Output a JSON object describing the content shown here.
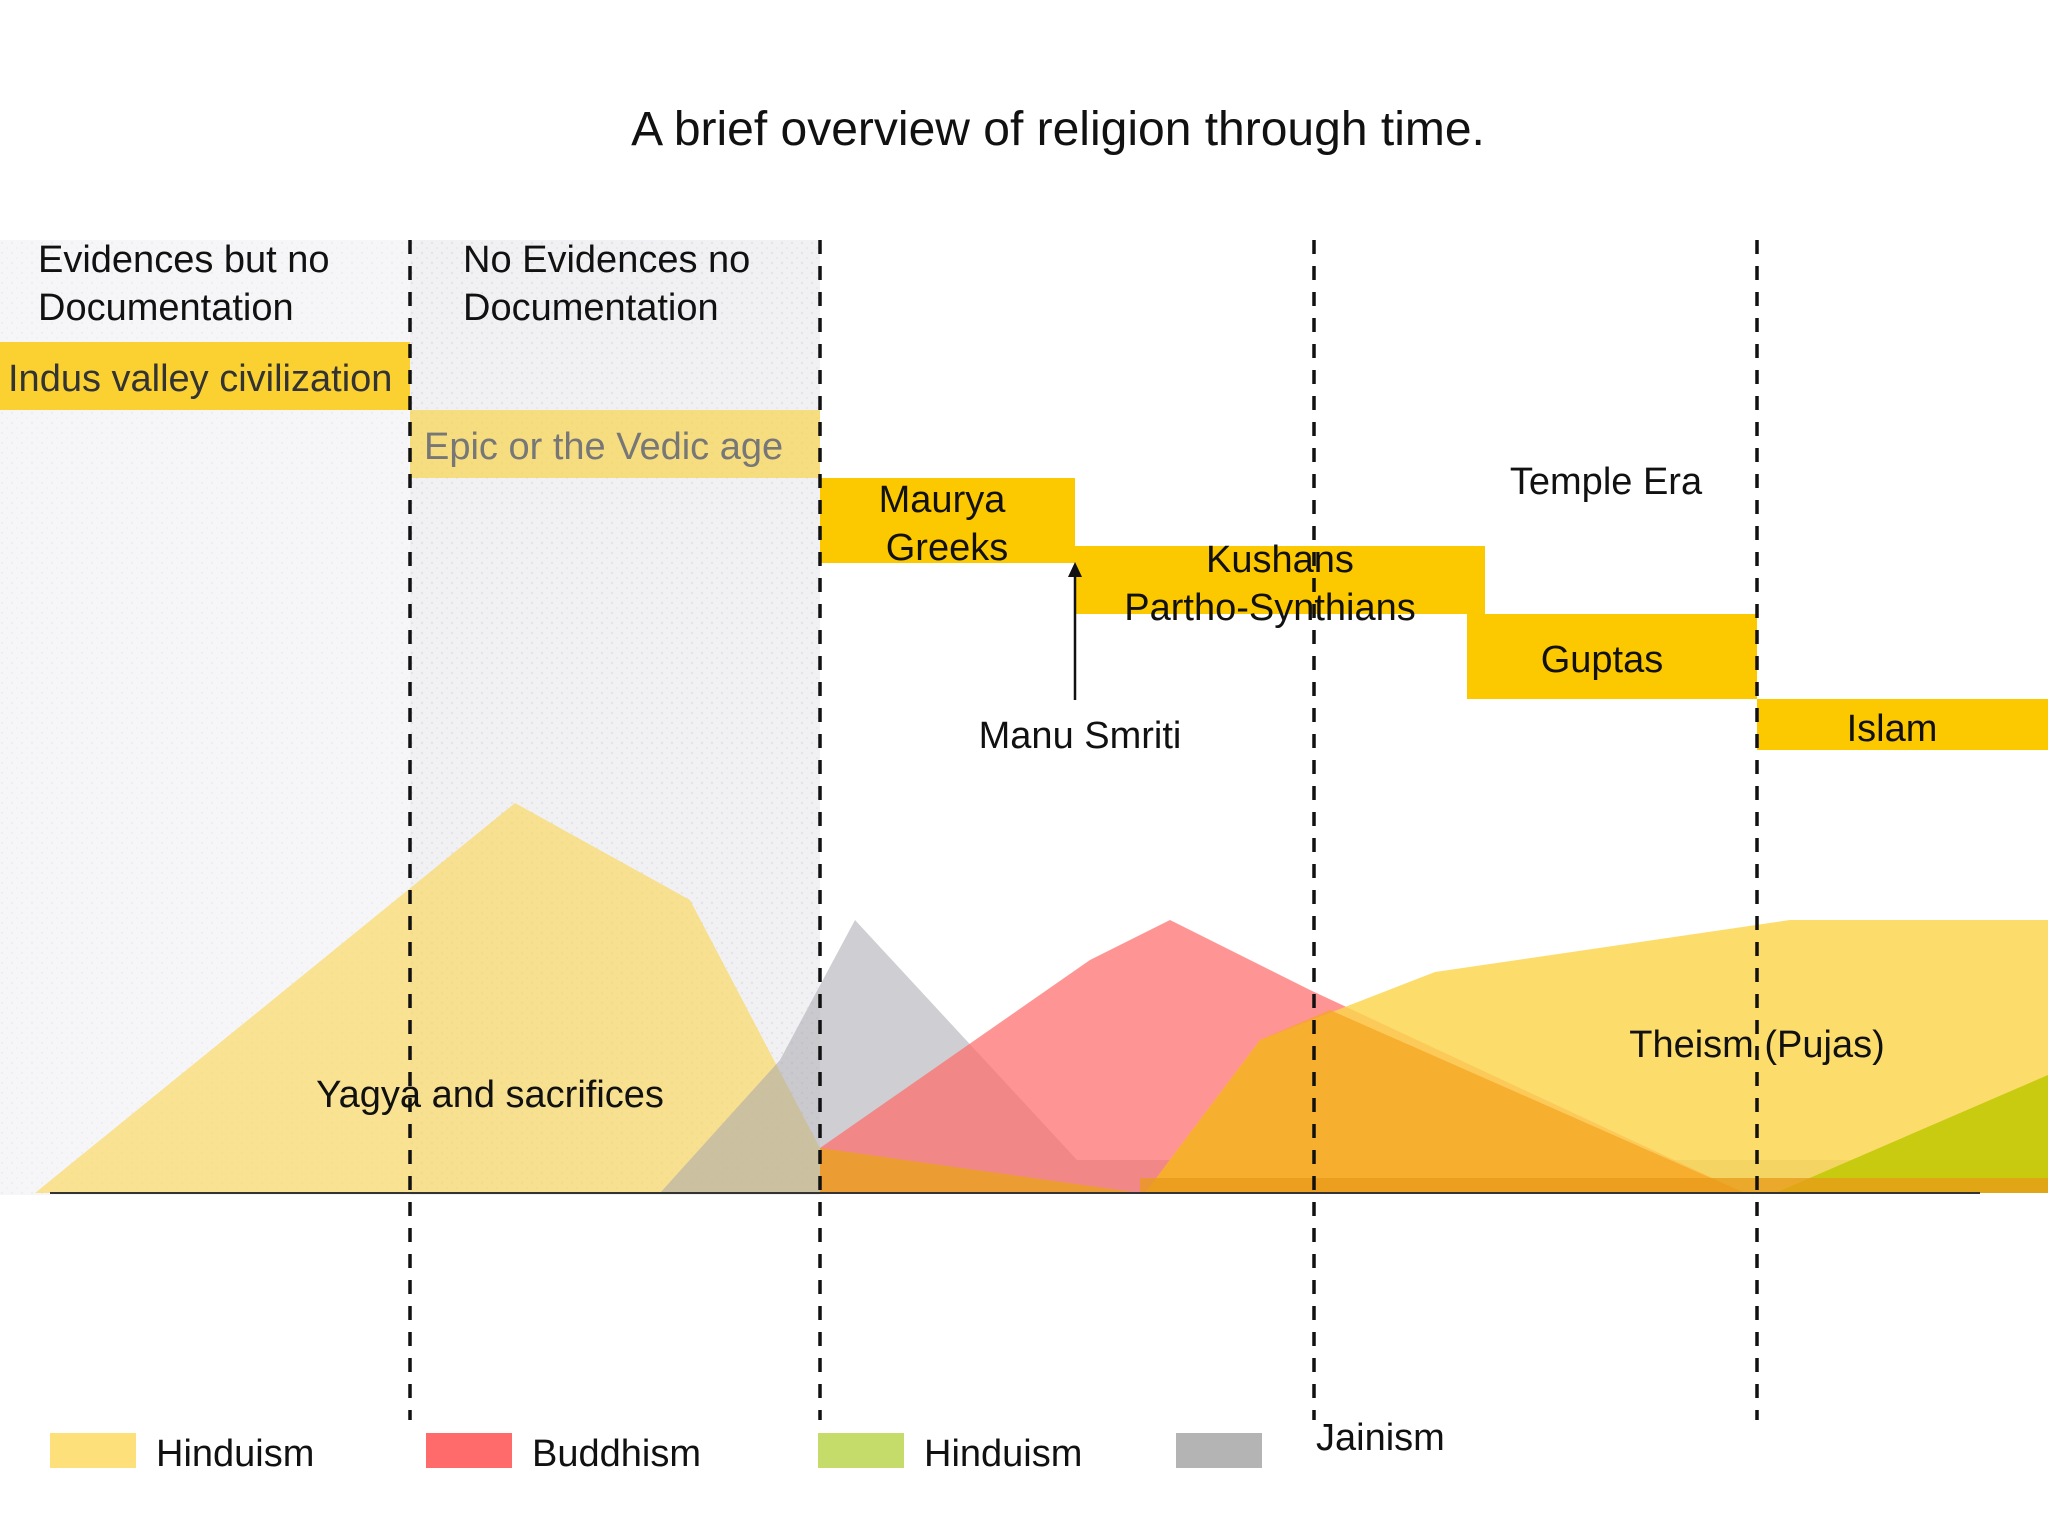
{
  "title": "A brief overview of religion through time.",
  "zones": {
    "evidence_no_doc_line1": "Evidences but no",
    "evidence_no_doc_line2": "Documentation",
    "no_evidence_line1": "No Evidences no",
    "no_evidence_line2": "Documentation"
  },
  "eras": {
    "indus": "Indus valley civilization",
    "vedic": "Epic or the Vedic age",
    "maurya_line1": "Maurya",
    "maurya_line2": "Greeks",
    "kushans_line1": "Kushans",
    "kushans_line2": "Partho-Synthians",
    "guptas": "Guptas",
    "islam": "Islam",
    "temple_era": "Temple Era"
  },
  "annotations": {
    "manu_smriti": "Manu Smriti",
    "yagya": "Yagya and sacrifices",
    "theism": "Theism (Pujas)"
  },
  "legend": {
    "items": [
      {
        "label": "Hinduism",
        "color": "#fde07a"
      },
      {
        "label": "Buddhism",
        "color": "#ff6b6b"
      },
      {
        "label": "Hinduism",
        "color": "#c6dc6a"
      },
      {
        "label": "Jainism",
        "color": "#b4b4b4"
      }
    ]
  },
  "colors": {
    "era_bar": "#fcc800",
    "era_bar_faded": "#f7d658",
    "hinduism_fill": "#fbd54c",
    "buddhism_fill": "#ff6b6b",
    "jainism_fill": "#a8a8ae",
    "green_fill": "#c0c800",
    "orange_fill": "#f5a623",
    "shade": "#e8e8ec"
  }
}
